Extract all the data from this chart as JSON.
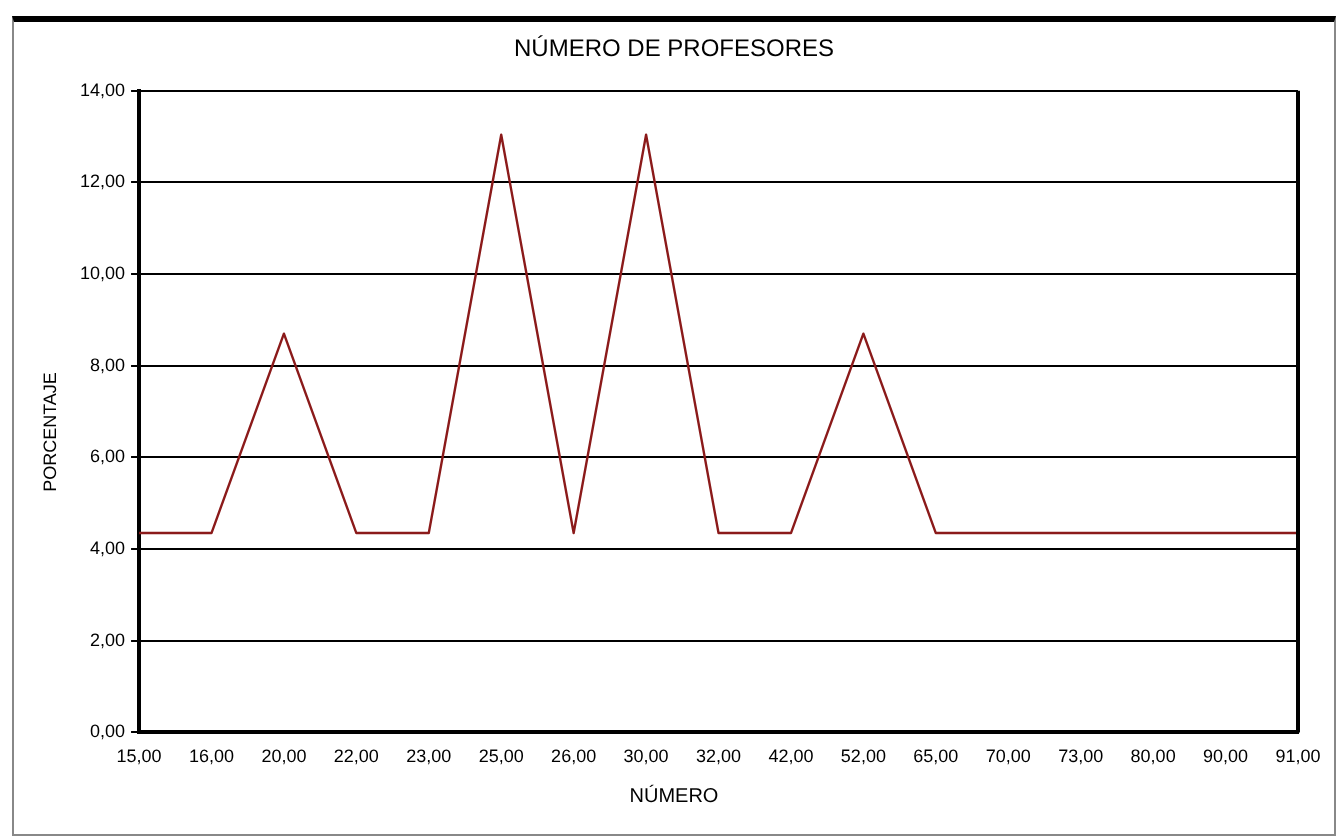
{
  "chart_data": {
    "type": "line",
    "title": "NÚMERO DE PROFESORES",
    "xlabel": "NÚMERO",
    "ylabel": "PORCENTAJE",
    "categories": [
      "15,00",
      "16,00",
      "20,00",
      "22,00",
      "23,00",
      "25,00",
      "26,00",
      "30,00",
      "32,00",
      "42,00",
      "52,00",
      "65,00",
      "70,00",
      "73,00",
      "80,00",
      "90,00",
      "91,00"
    ],
    "series": [
      {
        "color": "#8b1a1a",
        "values": [
          4.35,
          4.35,
          8.7,
          4.35,
          4.35,
          13.04,
          4.35,
          13.04,
          4.35,
          4.35,
          8.7,
          4.35,
          4.35,
          4.35,
          4.35,
          4.35,
          4.35
        ]
      }
    ],
    "ylim": [
      0,
      14
    ],
    "yticks": [
      {
        "value": 0,
        "label": "0,00"
      },
      {
        "value": 2,
        "label": "2,00"
      },
      {
        "value": 4,
        "label": "4,00"
      },
      {
        "value": 6,
        "label": "6,00"
      },
      {
        "value": 8,
        "label": "8,00"
      },
      {
        "value": 10,
        "label": "10,00"
      },
      {
        "value": 12,
        "label": "12,00"
      },
      {
        "value": 14,
        "label": "14,00"
      }
    ],
    "grid": "y",
    "legend": false,
    "marker": "none",
    "line_style": "solid"
  }
}
